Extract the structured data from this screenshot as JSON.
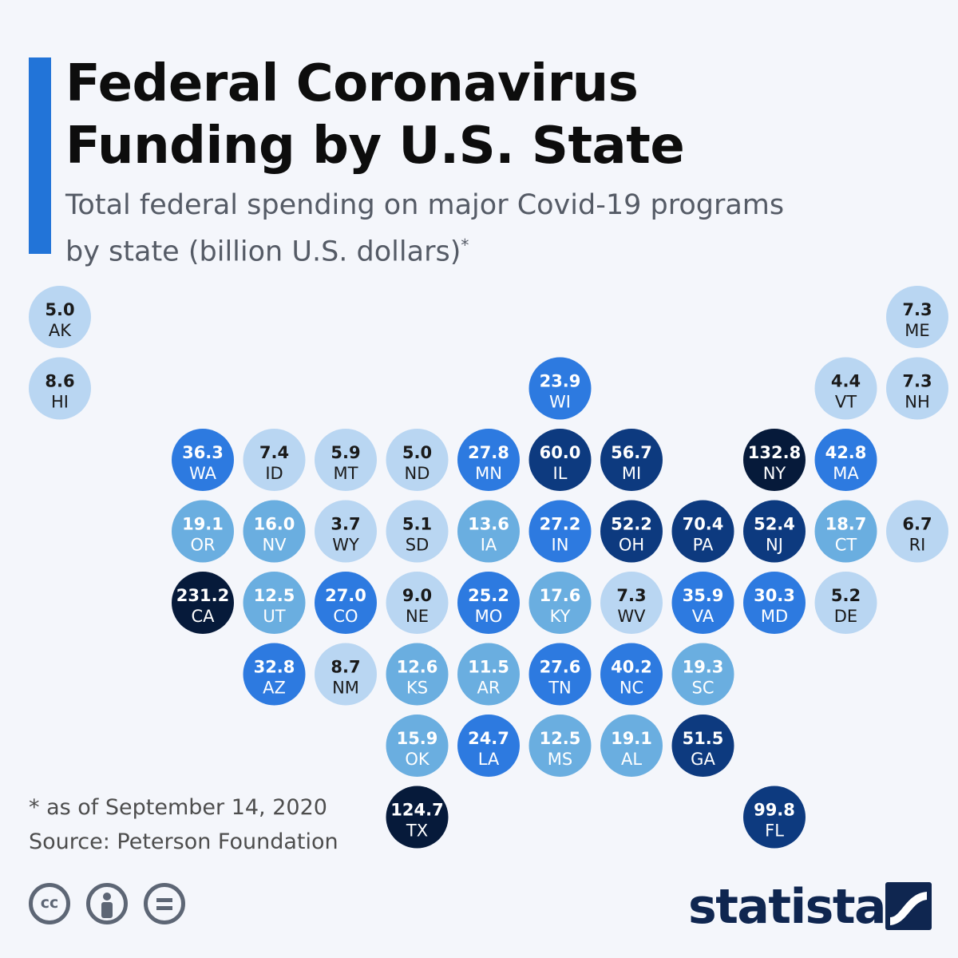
{
  "header": {
    "title_line1": "Federal Coronavirus",
    "title_line2": "Funding by U.S. State",
    "subtitle_line1": "Total federal spending on major Covid-19 programs",
    "subtitle_line2": "by state (billion U.S. dollars)",
    "subtitle_mark": "*"
  },
  "footer": {
    "note": "* as of September 14, 2020",
    "source": "Source: Peterson Foundation",
    "brand": "statista"
  },
  "license_icons": [
    "cc-icon",
    "attribution-icon",
    "no-derivatives-icon"
  ],
  "colors": {
    "accent": "#2274d8",
    "background": "#f4f6fb",
    "brand": "#0f2650",
    "scale": [
      "#b9d6f2",
      "#6aaee0",
      "#2d7ae0",
      "#0d3a7f",
      "#061a3a"
    ]
  },
  "chart_data": {
    "type": "tile-map",
    "unit": "billion U.S. dollars",
    "color_scale": {
      "bins": [
        [
          0,
          10
        ],
        [
          10,
          20
        ],
        [
          20,
          50
        ],
        [
          50,
          100
        ],
        [
          100,
          250
        ]
      ],
      "colors": [
        "#b9d6f2",
        "#6aaee0",
        "#2d7ae0",
        "#0d3a7f",
        "#061a3a"
      ]
    },
    "tiles": [
      {
        "state": "AK",
        "value": 5.0,
        "row": 0,
        "col": 0
      },
      {
        "state": "ME",
        "value": 7.3,
        "row": 0,
        "col": 12
      },
      {
        "state": "HI",
        "value": 8.6,
        "row": 1,
        "col": 0
      },
      {
        "state": "WI",
        "value": 23.9,
        "row": 1,
        "col": 7
      },
      {
        "state": "VT",
        "value": 4.4,
        "row": 1,
        "col": 11
      },
      {
        "state": "NH",
        "value": 7.3,
        "row": 1,
        "col": 12
      },
      {
        "state": "WA",
        "value": 36.3,
        "row": 2,
        "col": 2
      },
      {
        "state": "ID",
        "value": 7.4,
        "row": 2,
        "col": 3
      },
      {
        "state": "MT",
        "value": 5.9,
        "row": 2,
        "col": 4
      },
      {
        "state": "ND",
        "value": 5.0,
        "row": 2,
        "col": 5
      },
      {
        "state": "MN",
        "value": 27.8,
        "row": 2,
        "col": 6
      },
      {
        "state": "IL",
        "value": 60.0,
        "row": 2,
        "col": 7
      },
      {
        "state": "MI",
        "value": 56.7,
        "row": 2,
        "col": 8
      },
      {
        "state": "NY",
        "value": 132.8,
        "row": 2,
        "col": 10
      },
      {
        "state": "MA",
        "value": 42.8,
        "row": 2,
        "col": 11
      },
      {
        "state": "OR",
        "value": 19.1,
        "row": 3,
        "col": 2
      },
      {
        "state": "NV",
        "value": 16.0,
        "row": 3,
        "col": 3
      },
      {
        "state": "WY",
        "value": 3.7,
        "row": 3,
        "col": 4
      },
      {
        "state": "SD",
        "value": 5.1,
        "row": 3,
        "col": 5
      },
      {
        "state": "IA",
        "value": 13.6,
        "row": 3,
        "col": 6
      },
      {
        "state": "IN",
        "value": 27.2,
        "row": 3,
        "col": 7
      },
      {
        "state": "OH",
        "value": 52.2,
        "row": 3,
        "col": 8
      },
      {
        "state": "PA",
        "value": 70.4,
        "row": 3,
        "col": 9
      },
      {
        "state": "NJ",
        "value": 52.4,
        "row": 3,
        "col": 10
      },
      {
        "state": "CT",
        "value": 18.7,
        "row": 3,
        "col": 11
      },
      {
        "state": "RI",
        "value": 6.7,
        "row": 3,
        "col": 12
      },
      {
        "state": "CA",
        "value": 231.2,
        "row": 4,
        "col": 2
      },
      {
        "state": "UT",
        "value": 12.5,
        "row": 4,
        "col": 3
      },
      {
        "state": "CO",
        "value": 27.0,
        "row": 4,
        "col": 4
      },
      {
        "state": "NE",
        "value": 9.0,
        "row": 4,
        "col": 5
      },
      {
        "state": "MO",
        "value": 25.2,
        "row": 4,
        "col": 6
      },
      {
        "state": "KY",
        "value": 17.6,
        "row": 4,
        "col": 7
      },
      {
        "state": "WV",
        "value": 7.3,
        "row": 4,
        "col": 8
      },
      {
        "state": "VA",
        "value": 35.9,
        "row": 4,
        "col": 9
      },
      {
        "state": "MD",
        "value": 30.3,
        "row": 4,
        "col": 10
      },
      {
        "state": "DE",
        "value": 5.2,
        "row": 4,
        "col": 11
      },
      {
        "state": "AZ",
        "value": 32.8,
        "row": 5,
        "col": 3
      },
      {
        "state": "NM",
        "value": 8.7,
        "row": 5,
        "col": 4
      },
      {
        "state": "KS",
        "value": 12.6,
        "row": 5,
        "col": 5
      },
      {
        "state": "AR",
        "value": 11.5,
        "row": 5,
        "col": 6
      },
      {
        "state": "TN",
        "value": 27.6,
        "row": 5,
        "col": 7
      },
      {
        "state": "NC",
        "value": 40.2,
        "row": 5,
        "col": 8
      },
      {
        "state": "SC",
        "value": 19.3,
        "row": 5,
        "col": 9
      },
      {
        "state": "OK",
        "value": 15.9,
        "row": 6,
        "col": 5
      },
      {
        "state": "LA",
        "value": 24.7,
        "row": 6,
        "col": 6
      },
      {
        "state": "MS",
        "value": 12.5,
        "row": 6,
        "col": 7
      },
      {
        "state": "AL",
        "value": 19.1,
        "row": 6,
        "col": 8
      },
      {
        "state": "GA",
        "value": 51.5,
        "row": 6,
        "col": 9
      },
      {
        "state": "TX",
        "value": 124.7,
        "row": 7,
        "col": 5
      },
      {
        "state": "FL",
        "value": 99.8,
        "row": 7,
        "col": 10
      }
    ]
  }
}
